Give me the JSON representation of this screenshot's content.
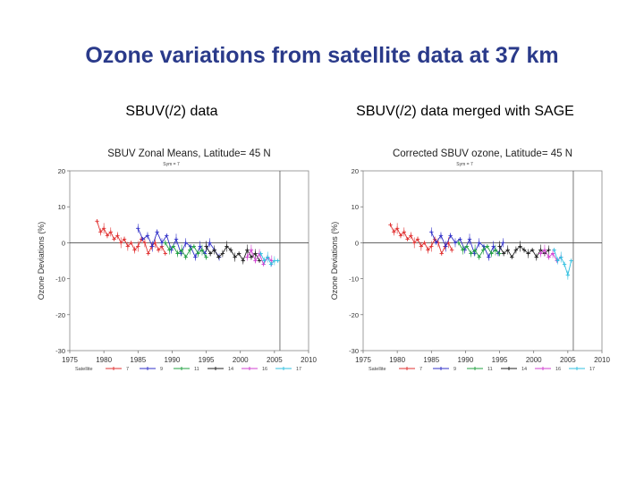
{
  "slide": {
    "title": "Ozone variations from satellite data at 37 km"
  },
  "panels": {
    "left_title": "SBUV(/2) data",
    "right_title": "SBUV(/2) data merged with SAGE"
  },
  "chart_data": [
    {
      "type": "scatter",
      "title": "SBUV Zonal Means, Latitude= 45 N",
      "subtitle": "Sym = 7",
      "xlabel": "",
      "ylabel": "Ozone Deviations (%)",
      "xlim": [
        1975,
        2010
      ],
      "ylim": [
        -30,
        20
      ],
      "xticks": [
        1975,
        1980,
        1985,
        1990,
        1995,
        2000,
        2005,
        2010
      ],
      "yticks": [
        20,
        10,
        0,
        -10,
        -20,
        -30
      ],
      "zero_line": true,
      "vline_x": 2005.8,
      "legend_label": "Satellite",
      "legend_position": "bottom",
      "series": [
        {
          "name": "7",
          "color": "#e03030",
          "x": [
            1979.0,
            1979.5,
            1980.0,
            1980.5,
            1981.0,
            1981.5,
            1982.0,
            1982.5,
            1983.0,
            1983.5,
            1984.0,
            1984.5,
            1985.0,
            1985.5,
            1986.0,
            1986.5,
            1987.0,
            1987.5,
            1988.0,
            1988.5,
            1989.0
          ],
          "y": [
            6,
            3,
            4,
            2,
            3,
            1,
            2,
            0,
            1,
            -1,
            0,
            -2,
            -1,
            1,
            0,
            -3,
            -1,
            0,
            -2,
            -1,
            -3
          ]
        },
        {
          "name": "9",
          "color": "#3030c8",
          "x": [
            1985.0,
            1985.7,
            1986.4,
            1987.1,
            1987.8,
            1988.5,
            1989.2,
            1989.9,
            1990.6,
            1991.3,
            1992.0,
            1992.7,
            1993.4,
            1994.1,
            1994.8,
            1995.5,
            1996.2,
            1996.9
          ],
          "y": [
            4,
            1,
            2,
            -1,
            3,
            0,
            2,
            -2,
            1,
            -3,
            0,
            -1,
            -4,
            -1,
            -3,
            0,
            -2,
            -4
          ]
        },
        {
          "name": "11",
          "color": "#20a040",
          "x": [
            1989.0,
            1989.6,
            1990.2,
            1990.8,
            1991.4,
            1992.0,
            1992.6,
            1993.2,
            1993.8,
            1994.4,
            1995.0
          ],
          "y": [
            0,
            -2,
            -1,
            -3,
            -2,
            -4,
            -2,
            -1,
            -3,
            -2,
            -4
          ]
        },
        {
          "name": "14",
          "color": "#202020",
          "x": [
            1995.0,
            1995.6,
            1996.2,
            1996.8,
            1997.4,
            1998.0,
            1998.6,
            1999.2,
            1999.8,
            2000.4,
            2001.0,
            2001.6,
            2002.2,
            2002.8
          ],
          "y": [
            -1,
            -3,
            -2,
            -4,
            -3,
            -1,
            -2,
            -4,
            -3,
            -5,
            -2,
            -4,
            -3,
            -5
          ]
        },
        {
          "name": "16",
          "color": "#d040d0",
          "x": [
            2001.0,
            2001.6,
            2002.2,
            2002.8,
            2003.4,
            2004.0,
            2004.6
          ],
          "y": [
            -4,
            -2,
            -5,
            -3,
            -6,
            -4,
            -5
          ]
        },
        {
          "name": "17",
          "color": "#30c0e0",
          "x": [
            2003.0,
            2003.5,
            2004.0,
            2004.5,
            2005.0,
            2005.5
          ],
          "y": [
            -3,
            -5,
            -4,
            -6,
            -5,
            -5
          ]
        }
      ]
    },
    {
      "type": "scatter",
      "title": "Corrected SBUV ozone, Latitude= 45 N",
      "subtitle": "Sym = 7",
      "xlabel": "",
      "ylabel": "Ozone Deviations (%)",
      "xlim": [
        1975,
        2010
      ],
      "ylim": [
        -30,
        20
      ],
      "xticks": [
        1975,
        1980,
        1985,
        1990,
        1995,
        2000,
        2005,
        2010
      ],
      "yticks": [
        20,
        10,
        0,
        -10,
        -20,
        -30
      ],
      "zero_line": true,
      "vline_x": 2005.8,
      "legend_label": "Satellite",
      "legend_position": "bottom",
      "series": [
        {
          "name": "7",
          "color": "#e03030",
          "x": [
            1979.0,
            1979.5,
            1980.0,
            1980.5,
            1981.0,
            1981.5,
            1982.0,
            1982.5,
            1983.0,
            1983.5,
            1984.0,
            1984.5,
            1985.0,
            1985.5,
            1986.0,
            1986.5,
            1987.0,
            1987.5,
            1988.0
          ],
          "y": [
            5,
            3,
            4,
            2,
            3,
            1,
            2,
            0,
            1,
            -1,
            0,
            -2,
            -1,
            1,
            0,
            -3,
            -1,
            0,
            -2
          ]
        },
        {
          "name": "9",
          "color": "#3030c8",
          "x": [
            1985.0,
            1985.7,
            1986.4,
            1987.1,
            1987.8,
            1988.5,
            1989.2,
            1989.9,
            1990.6,
            1991.3,
            1992.0,
            1992.7,
            1993.4,
            1994.1,
            1994.8,
            1995.5
          ],
          "y": [
            3,
            0,
            2,
            -1,
            2,
            0,
            1,
            -2,
            1,
            -3,
            0,
            -1,
            -4,
            -1,
            -3,
            0
          ]
        },
        {
          "name": "11",
          "color": "#20a040",
          "x": [
            1989.0,
            1989.6,
            1990.2,
            1990.8,
            1991.4,
            1992.0,
            1992.6,
            1993.2,
            1993.8,
            1994.4,
            1995.0
          ],
          "y": [
            0,
            -2,
            -1,
            -3,
            -2,
            -4,
            -2,
            -1,
            -3,
            -2,
            -3
          ]
        },
        {
          "name": "14",
          "color": "#202020",
          "x": [
            1995.0,
            1995.6,
            1996.2,
            1996.8,
            1997.4,
            1998.0,
            1998.6,
            1999.2,
            1999.8,
            2000.4,
            2001.0,
            2001.6,
            2002.2
          ],
          "y": [
            -1,
            -3,
            -2,
            -4,
            -2,
            -1,
            -2,
            -3,
            -2,
            -4,
            -2,
            -3,
            -2
          ]
        },
        {
          "name": "16",
          "color": "#d040d0",
          "x": [
            2001.0,
            2001.6,
            2002.2,
            2002.8,
            2003.4,
            2004.0
          ],
          "y": [
            -3,
            -2,
            -4,
            -3,
            -5,
            -4
          ]
        },
        {
          "name": "17",
          "color": "#30c0e0",
          "x": [
            2003.0,
            2003.5,
            2004.0,
            2004.5,
            2005.0,
            2005.5
          ],
          "y": [
            -2,
            -5,
            -4,
            -6,
            -9,
            -5
          ]
        }
      ]
    }
  ]
}
